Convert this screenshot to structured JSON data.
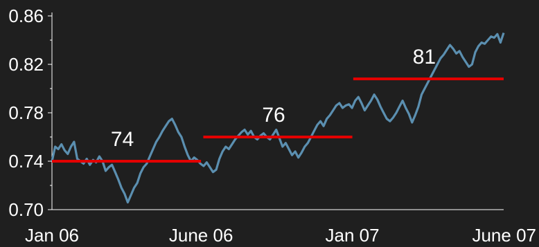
{
  "chart_data": {
    "type": "line",
    "title": "",
    "xlabel": "",
    "ylabel": "",
    "x_tick_labels": [
      "Jan 06",
      "June 06",
      "Jan 07",
      "June 07"
    ],
    "y_tick_labels": [
      "0.86",
      "0.82",
      "0.78",
      "0.74",
      "0.70"
    ],
    "ylim": [
      0.7,
      0.86
    ],
    "x_range": [
      "2006-01",
      "2007-06"
    ],
    "grid": false,
    "legend": "none",
    "colors": {
      "background": "#1f1f1f",
      "series": "#5b8fb0",
      "average_lines": "#e30000",
      "text": "#ffffff"
    },
    "series": [
      {
        "values": [
          0.74,
          0.752,
          0.75,
          0.754,
          0.749,
          0.746,
          0.752,
          0.756,
          0.742,
          0.74,
          0.738,
          0.742,
          0.737,
          0.741,
          0.739,
          0.744,
          0.74,
          0.732,
          0.735,
          0.737,
          0.731,
          0.725,
          0.718,
          0.713,
          0.706,
          0.712,
          0.718,
          0.722,
          0.73,
          0.735,
          0.738,
          0.744,
          0.75,
          0.756,
          0.76,
          0.765,
          0.769,
          0.773,
          0.775,
          0.77,
          0.764,
          0.76,
          0.752,
          0.745,
          0.74,
          0.743,
          0.741,
          0.738,
          0.736,
          0.739,
          0.735,
          0.731,
          0.733,
          0.742,
          0.748,
          0.752,
          0.75,
          0.754,
          0.758,
          0.761,
          0.764,
          0.766,
          0.762,
          0.765,
          0.76,
          0.758,
          0.761,
          0.763,
          0.76,
          0.758,
          0.762,
          0.766,
          0.759,
          0.752,
          0.755,
          0.75,
          0.745,
          0.748,
          0.743,
          0.747,
          0.752,
          0.755,
          0.76,
          0.765,
          0.77,
          0.773,
          0.769,
          0.775,
          0.778,
          0.782,
          0.786,
          0.788,
          0.784,
          0.786,
          0.787,
          0.784,
          0.79,
          0.793,
          0.788,
          0.782,
          0.786,
          0.79,
          0.795,
          0.791,
          0.785,
          0.78,
          0.775,
          0.773,
          0.776,
          0.78,
          0.785,
          0.79,
          0.784,
          0.779,
          0.772,
          0.778,
          0.785,
          0.795,
          0.8,
          0.805,
          0.81,
          0.815,
          0.82,
          0.825,
          0.828,
          0.832,
          0.836,
          0.833,
          0.829,
          0.831,
          0.826,
          0.822,
          0.818,
          0.82,
          0.83,
          0.835,
          0.838,
          0.837,
          0.84,
          0.843,
          0.842,
          0.845,
          0.838,
          0.846
        ]
      }
    ],
    "averages": [
      {
        "label": "74",
        "value": 0.74,
        "from": 0.0,
        "to": 0.33
      },
      {
        "label": "76",
        "value": 0.76,
        "from": 0.335,
        "to": 0.665
      },
      {
        "label": "81",
        "value": 0.808,
        "from": 0.667,
        "to": 1.0
      }
    ]
  }
}
